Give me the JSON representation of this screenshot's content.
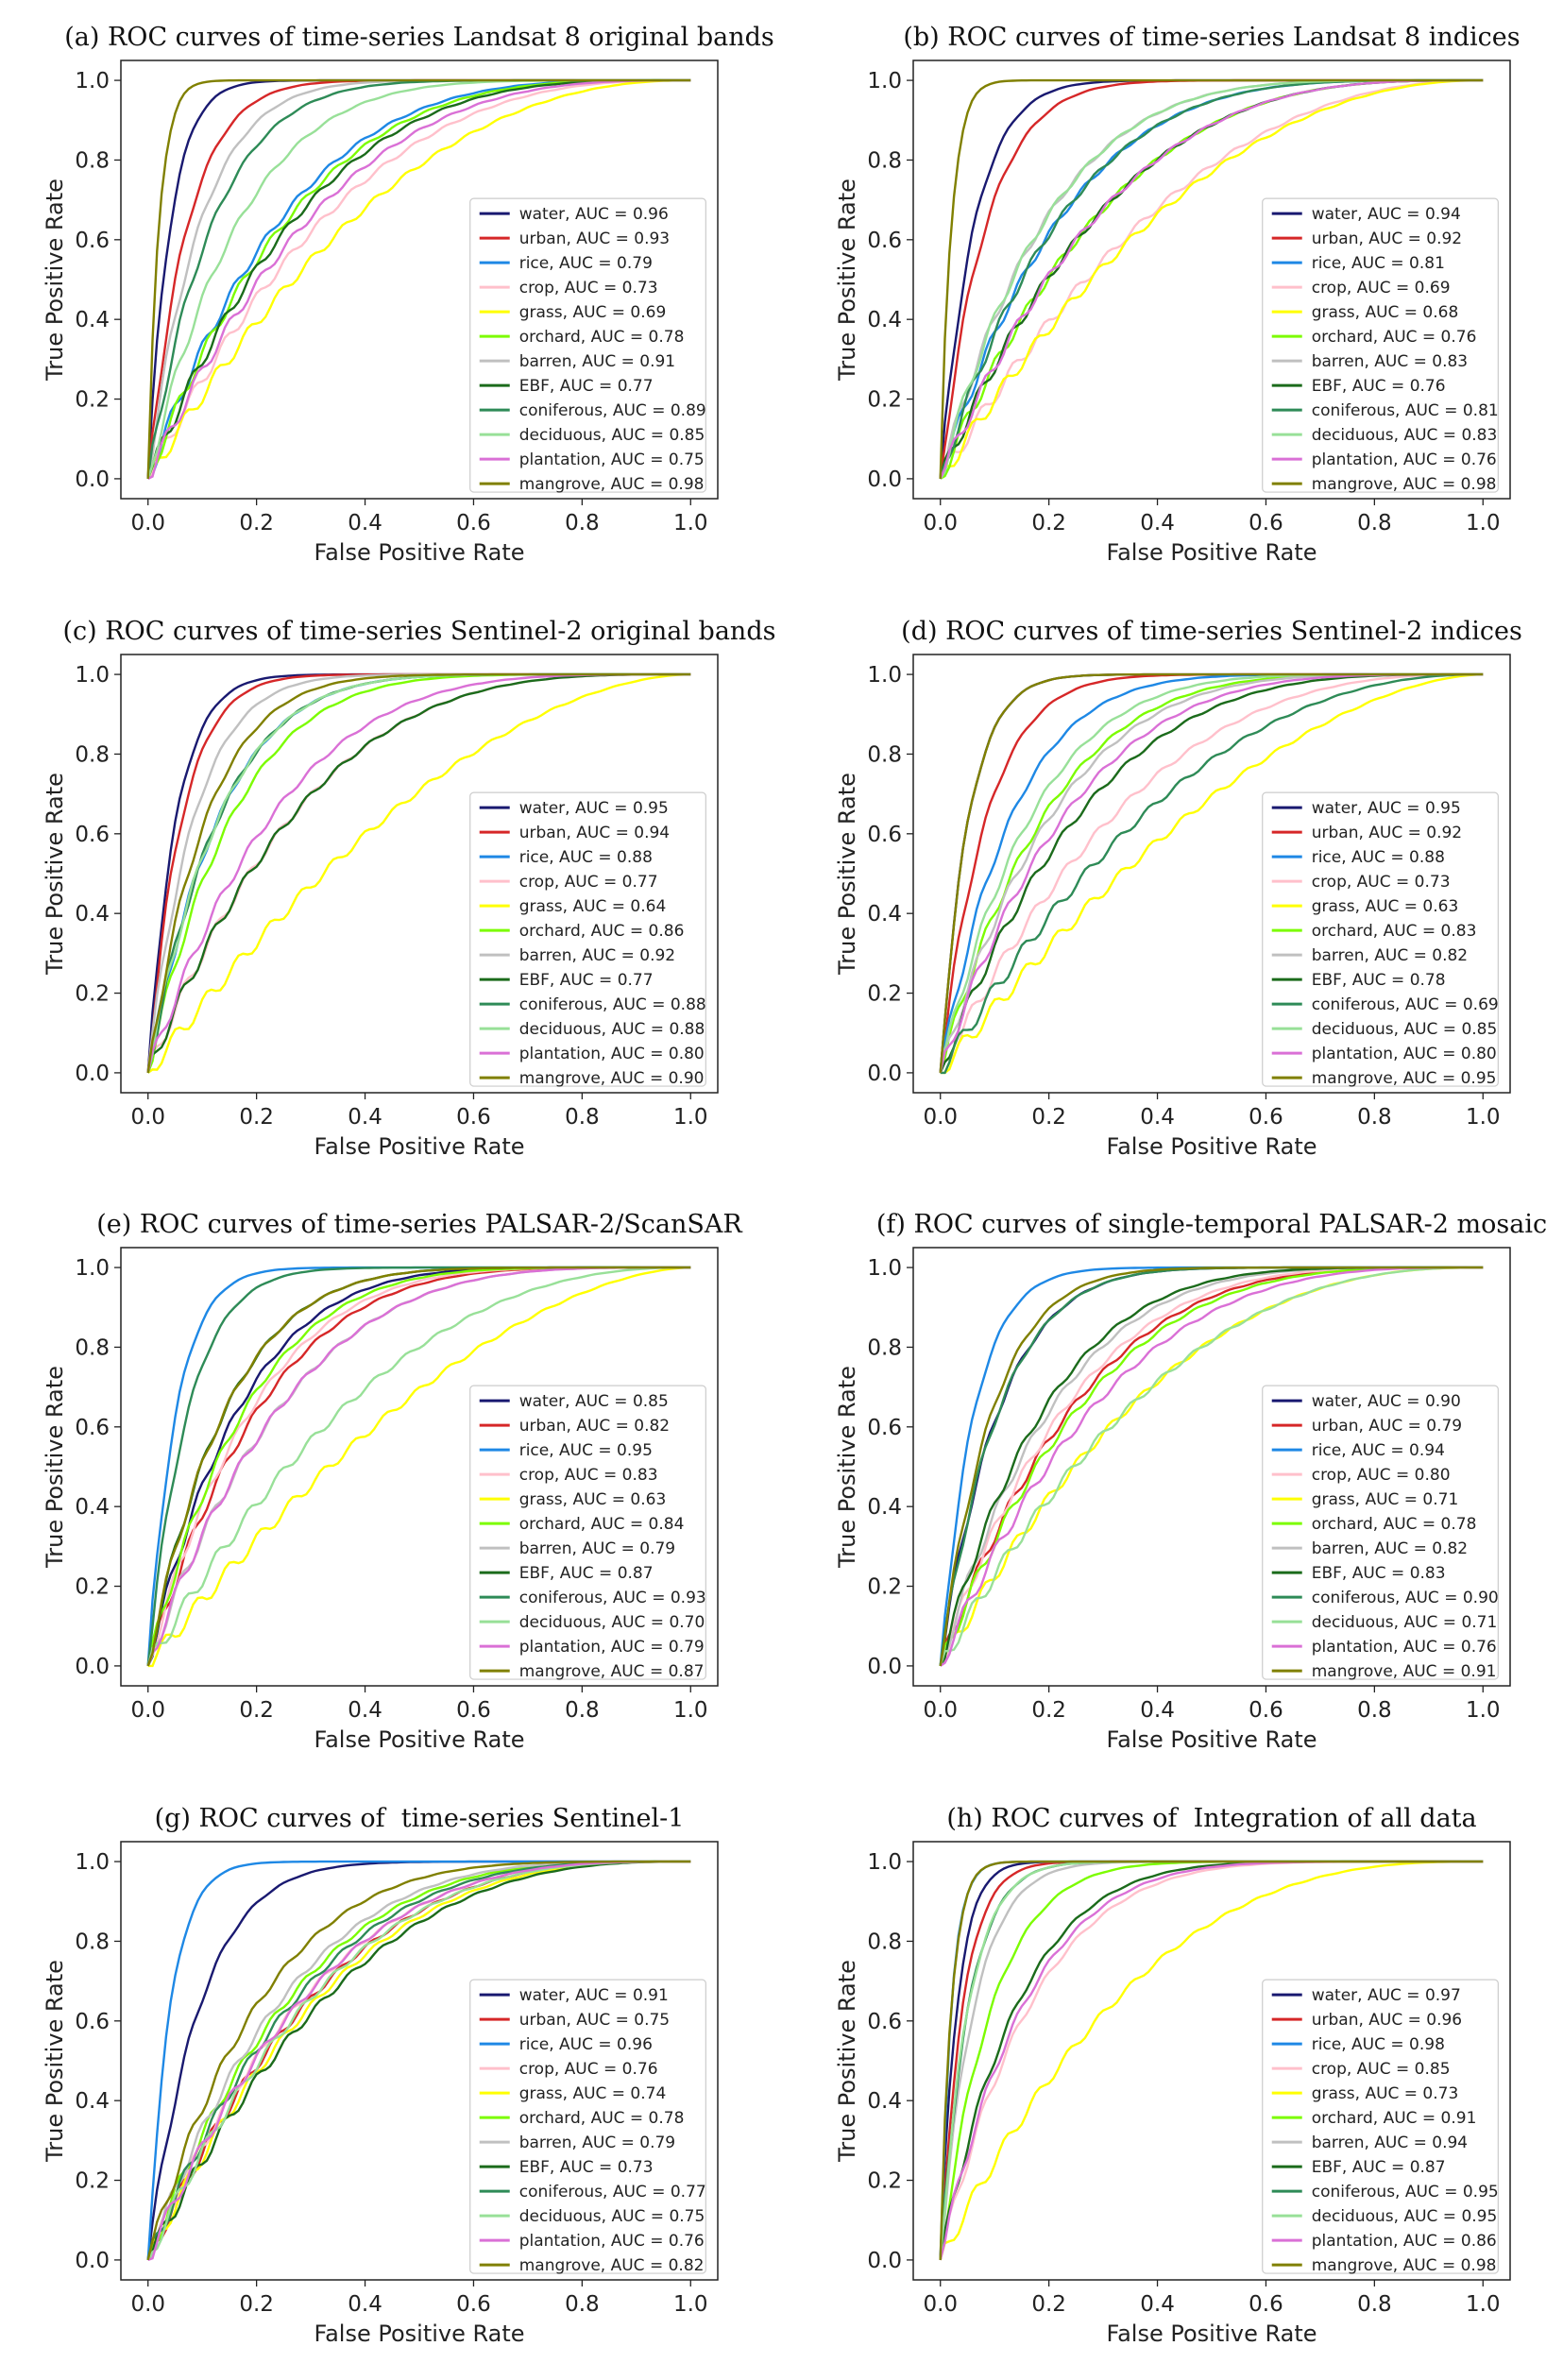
{
  "chart_data": [
    {
      "type": "line",
      "title": "(a) ROC curves of time-series Landsat 8 original bands",
      "xlabel": "False Positive Rate",
      "ylabel": "True Positive Rate",
      "xlim": [
        -0.05,
        1.05
      ],
      "ylim": [
        -0.05,
        1.05
      ],
      "xticks": [
        "0.0",
        "0.2",
        "0.4",
        "0.6",
        "0.8",
        "1.0"
      ],
      "yticks": [
        "0.0",
        "0.2",
        "0.4",
        "0.6",
        "0.8",
        "1.0"
      ],
      "legend": "lower-right",
      "series": [
        {
          "name": "water",
          "auc": 0.96,
          "label": "water, AUC = 0.96"
        },
        {
          "name": "urban",
          "auc": 0.93,
          "label": "urban, AUC = 0.93"
        },
        {
          "name": "rice",
          "auc": 0.79,
          "label": "rice, AUC = 0.79"
        },
        {
          "name": "crop",
          "auc": 0.73,
          "label": "crop, AUC = 0.73"
        },
        {
          "name": "grass",
          "auc": 0.69,
          "label": "grass, AUC = 0.69"
        },
        {
          "name": "orchard",
          "auc": 0.78,
          "label": "orchard, AUC = 0.78"
        },
        {
          "name": "barren",
          "auc": 0.91,
          "label": "barren, AUC = 0.91"
        },
        {
          "name": "EBF",
          "auc": 0.77,
          "label": "EBF, AUC = 0.77"
        },
        {
          "name": "coniferous",
          "auc": 0.89,
          "label": "coniferous, AUC = 0.89"
        },
        {
          "name": "deciduous",
          "auc": 0.85,
          "label": "deciduous, AUC = 0.85"
        },
        {
          "name": "plantation",
          "auc": 0.75,
          "label": "plantation, AUC = 0.75"
        },
        {
          "name": "mangrove",
          "auc": 0.98,
          "label": "mangrove, AUC = 0.98"
        }
      ]
    },
    {
      "type": "line",
      "title": "(b) ROC curves of time-series Landsat 8 indices",
      "xlabel": "False Positive Rate",
      "ylabel": "True Positive Rate",
      "xlim": [
        -0.05,
        1.05
      ],
      "ylim": [
        -0.05,
        1.05
      ],
      "xticks": [
        "0.0",
        "0.2",
        "0.4",
        "0.6",
        "0.8",
        "1.0"
      ],
      "yticks": [
        "0.0",
        "0.2",
        "0.4",
        "0.6",
        "0.8",
        "1.0"
      ],
      "legend": "lower-right",
      "series": [
        {
          "name": "water",
          "auc": 0.94,
          "label": "water, AUC = 0.94"
        },
        {
          "name": "urban",
          "auc": 0.92,
          "label": "urban, AUC = 0.92"
        },
        {
          "name": "rice",
          "auc": 0.81,
          "label": "rice, AUC = 0.81"
        },
        {
          "name": "crop",
          "auc": 0.69,
          "label": "crop, AUC = 0.69"
        },
        {
          "name": "grass",
          "auc": 0.68,
          "label": "grass, AUC = 0.68"
        },
        {
          "name": "orchard",
          "auc": 0.76,
          "label": "orchard, AUC = 0.76"
        },
        {
          "name": "barren",
          "auc": 0.83,
          "label": "barren, AUC = 0.83"
        },
        {
          "name": "EBF",
          "auc": 0.76,
          "label": "EBF, AUC = 0.76"
        },
        {
          "name": "coniferous",
          "auc": 0.81,
          "label": "coniferous, AUC = 0.81"
        },
        {
          "name": "deciduous",
          "auc": 0.83,
          "label": "deciduous, AUC = 0.83"
        },
        {
          "name": "plantation",
          "auc": 0.76,
          "label": "plantation, AUC = 0.76"
        },
        {
          "name": "mangrove",
          "auc": 0.98,
          "label": "mangrove, AUC = 0.98"
        }
      ]
    },
    {
      "type": "line",
      "title": "(c) ROC curves of time-series Sentinel-2 original bands",
      "xlabel": "False Positive Rate",
      "ylabel": "True Positive Rate",
      "xlim": [
        -0.05,
        1.05
      ],
      "ylim": [
        -0.05,
        1.05
      ],
      "xticks": [
        "0.0",
        "0.2",
        "0.4",
        "0.6",
        "0.8",
        "1.0"
      ],
      "yticks": [
        "0.0",
        "0.2",
        "0.4",
        "0.6",
        "0.8",
        "1.0"
      ],
      "legend": "lower-right",
      "series": [
        {
          "name": "water",
          "auc": 0.95,
          "label": "water, AUC = 0.95"
        },
        {
          "name": "urban",
          "auc": 0.94,
          "label": "urban, AUC = 0.94"
        },
        {
          "name": "rice",
          "auc": 0.88,
          "label": "rice, AUC = 0.88"
        },
        {
          "name": "crop",
          "auc": 0.77,
          "label": "crop, AUC = 0.77"
        },
        {
          "name": "grass",
          "auc": 0.64,
          "label": "grass, AUC = 0.64"
        },
        {
          "name": "orchard",
          "auc": 0.86,
          "label": "orchard, AUC = 0.86"
        },
        {
          "name": "barren",
          "auc": 0.92,
          "label": "barren, AUC = 0.92"
        },
        {
          "name": "EBF",
          "auc": 0.77,
          "label": "EBF, AUC = 0.77"
        },
        {
          "name": "coniferous",
          "auc": 0.88,
          "label": "coniferous, AUC = 0.88"
        },
        {
          "name": "deciduous",
          "auc": 0.88,
          "label": "deciduous, AUC = 0.88"
        },
        {
          "name": "plantation",
          "auc": 0.8,
          "label": "plantation, AUC = 0.80"
        },
        {
          "name": "mangrove",
          "auc": 0.9,
          "label": "mangrove, AUC = 0.90"
        }
      ]
    },
    {
      "type": "line",
      "title": "(d) ROC curves of time-series Sentinel-2 indices",
      "xlabel": "False Positive Rate",
      "ylabel": "True Positive Rate",
      "xlim": [
        -0.05,
        1.05
      ],
      "ylim": [
        -0.05,
        1.05
      ],
      "xticks": [
        "0.0",
        "0.2",
        "0.4",
        "0.6",
        "0.8",
        "1.0"
      ],
      "yticks": [
        "0.0",
        "0.2",
        "0.4",
        "0.6",
        "0.8",
        "1.0"
      ],
      "legend": "lower-right",
      "series": [
        {
          "name": "water",
          "auc": 0.95,
          "label": "water, AUC = 0.95"
        },
        {
          "name": "urban",
          "auc": 0.92,
          "label": "urban, AUC = 0.92"
        },
        {
          "name": "rice",
          "auc": 0.88,
          "label": "rice, AUC = 0.88"
        },
        {
          "name": "crop",
          "auc": 0.73,
          "label": "crop, AUC = 0.73"
        },
        {
          "name": "grass",
          "auc": 0.63,
          "label": "grass, AUC = 0.63"
        },
        {
          "name": "orchard",
          "auc": 0.83,
          "label": "orchard, AUC = 0.83"
        },
        {
          "name": "barren",
          "auc": 0.82,
          "label": "barren, AUC = 0.82"
        },
        {
          "name": "EBF",
          "auc": 0.78,
          "label": "EBF, AUC = 0.78"
        },
        {
          "name": "coniferous",
          "auc": 0.69,
          "label": "coniferous, AUC = 0.69"
        },
        {
          "name": "deciduous",
          "auc": 0.85,
          "label": "deciduous, AUC = 0.85"
        },
        {
          "name": "plantation",
          "auc": 0.8,
          "label": "plantation, AUC = 0.80"
        },
        {
          "name": "mangrove",
          "auc": 0.95,
          "label": "mangrove, AUC = 0.95"
        }
      ]
    },
    {
      "type": "line",
      "title": "(e) ROC curves of time-series PALSAR-2/ScanSAR",
      "xlabel": "False Positive Rate",
      "ylabel": "True Positive Rate",
      "xlim": [
        -0.05,
        1.05
      ],
      "ylim": [
        -0.05,
        1.05
      ],
      "xticks": [
        "0.0",
        "0.2",
        "0.4",
        "0.6",
        "0.8",
        "1.0"
      ],
      "yticks": [
        "0.0",
        "0.2",
        "0.4",
        "0.6",
        "0.8",
        "1.0"
      ],
      "legend": "lower-right",
      "series": [
        {
          "name": "water",
          "auc": 0.85,
          "label": "water, AUC = 0.85"
        },
        {
          "name": "urban",
          "auc": 0.82,
          "label": "urban, AUC = 0.82"
        },
        {
          "name": "rice",
          "auc": 0.95,
          "label": "rice, AUC = 0.95"
        },
        {
          "name": "crop",
          "auc": 0.83,
          "label": "crop, AUC = 0.83"
        },
        {
          "name": "grass",
          "auc": 0.63,
          "label": "grass, AUC = 0.63"
        },
        {
          "name": "orchard",
          "auc": 0.84,
          "label": "orchard, AUC = 0.84"
        },
        {
          "name": "barren",
          "auc": 0.79,
          "label": "barren, AUC = 0.79"
        },
        {
          "name": "EBF",
          "auc": 0.87,
          "label": "EBF, AUC = 0.87"
        },
        {
          "name": "coniferous",
          "auc": 0.93,
          "label": "coniferous, AUC = 0.93"
        },
        {
          "name": "deciduous",
          "auc": 0.7,
          "label": "deciduous, AUC = 0.70"
        },
        {
          "name": "plantation",
          "auc": 0.79,
          "label": "plantation, AUC = 0.79"
        },
        {
          "name": "mangrove",
          "auc": 0.87,
          "label": "mangrove, AUC = 0.87"
        }
      ]
    },
    {
      "type": "line",
      "title": "(f) ROC curves of single-temporal PALSAR-2 mosaic",
      "xlabel": "False Positive Rate",
      "ylabel": "True Positive Rate",
      "xlim": [
        -0.05,
        1.05
      ],
      "ylim": [
        -0.05,
        1.05
      ],
      "xticks": [
        "0.0",
        "0.2",
        "0.4",
        "0.6",
        "0.8",
        "1.0"
      ],
      "yticks": [
        "0.0",
        "0.2",
        "0.4",
        "0.6",
        "0.8",
        "1.0"
      ],
      "legend": "lower-right",
      "series": [
        {
          "name": "water",
          "auc": 0.9,
          "label": "water, AUC = 0.90"
        },
        {
          "name": "urban",
          "auc": 0.79,
          "label": "urban, AUC = 0.79"
        },
        {
          "name": "rice",
          "auc": 0.94,
          "label": "rice, AUC = 0.94"
        },
        {
          "name": "crop",
          "auc": 0.8,
          "label": "crop, AUC = 0.80"
        },
        {
          "name": "grass",
          "auc": 0.71,
          "label": "grass, AUC = 0.71"
        },
        {
          "name": "orchard",
          "auc": 0.78,
          "label": "orchard, AUC = 0.78"
        },
        {
          "name": "barren",
          "auc": 0.82,
          "label": "barren, AUC = 0.82"
        },
        {
          "name": "EBF",
          "auc": 0.83,
          "label": "EBF, AUC = 0.83"
        },
        {
          "name": "coniferous",
          "auc": 0.9,
          "label": "coniferous, AUC = 0.90"
        },
        {
          "name": "deciduous",
          "auc": 0.71,
          "label": "deciduous, AUC = 0.71"
        },
        {
          "name": "plantation",
          "auc": 0.76,
          "label": "plantation, AUC = 0.76"
        },
        {
          "name": "mangrove",
          "auc": 0.91,
          "label": "mangrove, AUC = 0.91"
        }
      ]
    },
    {
      "type": "line",
      "title": "(g) ROC curves of  time-series Sentinel-1",
      "xlabel": "False Positive Rate",
      "ylabel": "True Positive Rate",
      "xlim": [
        -0.05,
        1.05
      ],
      "ylim": [
        -0.05,
        1.05
      ],
      "xticks": [
        "0.0",
        "0.2",
        "0.4",
        "0.6",
        "0.8",
        "1.0"
      ],
      "yticks": [
        "0.0",
        "0.2",
        "0.4",
        "0.6",
        "0.8",
        "1.0"
      ],
      "legend": "lower-right",
      "series": [
        {
          "name": "water",
          "auc": 0.91,
          "label": "water, AUC = 0.91"
        },
        {
          "name": "urban",
          "auc": 0.75,
          "label": "urban, AUC = 0.75"
        },
        {
          "name": "rice",
          "auc": 0.96,
          "label": "rice, AUC = 0.96"
        },
        {
          "name": "crop",
          "auc": 0.76,
          "label": "crop, AUC = 0.76"
        },
        {
          "name": "grass",
          "auc": 0.74,
          "label": "grass, AUC = 0.74"
        },
        {
          "name": "orchard",
          "auc": 0.78,
          "label": "orchard, AUC = 0.78"
        },
        {
          "name": "barren",
          "auc": 0.79,
          "label": "barren, AUC = 0.79"
        },
        {
          "name": "EBF",
          "auc": 0.73,
          "label": "EBF, AUC = 0.73"
        },
        {
          "name": "coniferous",
          "auc": 0.77,
          "label": "coniferous, AUC = 0.77"
        },
        {
          "name": "deciduous",
          "auc": 0.75,
          "label": "deciduous, AUC = 0.75"
        },
        {
          "name": "plantation",
          "auc": 0.76,
          "label": "plantation, AUC = 0.76"
        },
        {
          "name": "mangrove",
          "auc": 0.82,
          "label": "mangrove, AUC = 0.82"
        }
      ]
    },
    {
      "type": "line",
      "title": "(h) ROC curves of  Integration of all data",
      "xlabel": "False Positive Rate",
      "ylabel": "True Positive Rate",
      "xlim": [
        -0.05,
        1.05
      ],
      "ylim": [
        -0.05,
        1.05
      ],
      "xticks": [
        "0.0",
        "0.2",
        "0.4",
        "0.6",
        "0.8",
        "1.0"
      ],
      "yticks": [
        "0.0",
        "0.2",
        "0.4",
        "0.6",
        "0.8",
        "1.0"
      ],
      "legend": "lower-right",
      "series": [
        {
          "name": "water",
          "auc": 0.97,
          "label": "water, AUC = 0.97"
        },
        {
          "name": "urban",
          "auc": 0.96,
          "label": "urban, AUC = 0.96"
        },
        {
          "name": "rice",
          "auc": 0.98,
          "label": "rice, AUC = 0.98"
        },
        {
          "name": "crop",
          "auc": 0.85,
          "label": "crop, AUC = 0.85"
        },
        {
          "name": "grass",
          "auc": 0.73,
          "label": "grass, AUC = 0.73"
        },
        {
          "name": "orchard",
          "auc": 0.91,
          "label": "orchard, AUC = 0.91"
        },
        {
          "name": "barren",
          "auc": 0.94,
          "label": "barren, AUC = 0.94"
        },
        {
          "name": "EBF",
          "auc": 0.87,
          "label": "EBF, AUC = 0.87"
        },
        {
          "name": "coniferous",
          "auc": 0.95,
          "label": "coniferous, AUC = 0.95"
        },
        {
          "name": "deciduous",
          "auc": 0.95,
          "label": "deciduous, AUC = 0.95"
        },
        {
          "name": "plantation",
          "auc": 0.86,
          "label": "plantation, AUC = 0.86"
        },
        {
          "name": "mangrove",
          "auc": 0.98,
          "label": "mangrove, AUC = 0.98"
        }
      ]
    }
  ],
  "series_colors": {
    "water": "#191970",
    "urban": "#d62728",
    "rice": "#1e88e5",
    "crop": "#ffc0cb",
    "grass": "#ffff00",
    "orchard": "#7cfc00",
    "barren": "#c0c0c0",
    "EBF": "#1b6b1b",
    "coniferous": "#2e8b57",
    "deciduous": "#98e098",
    "plantation": "#da70d6",
    "mangrove": "#808000"
  }
}
